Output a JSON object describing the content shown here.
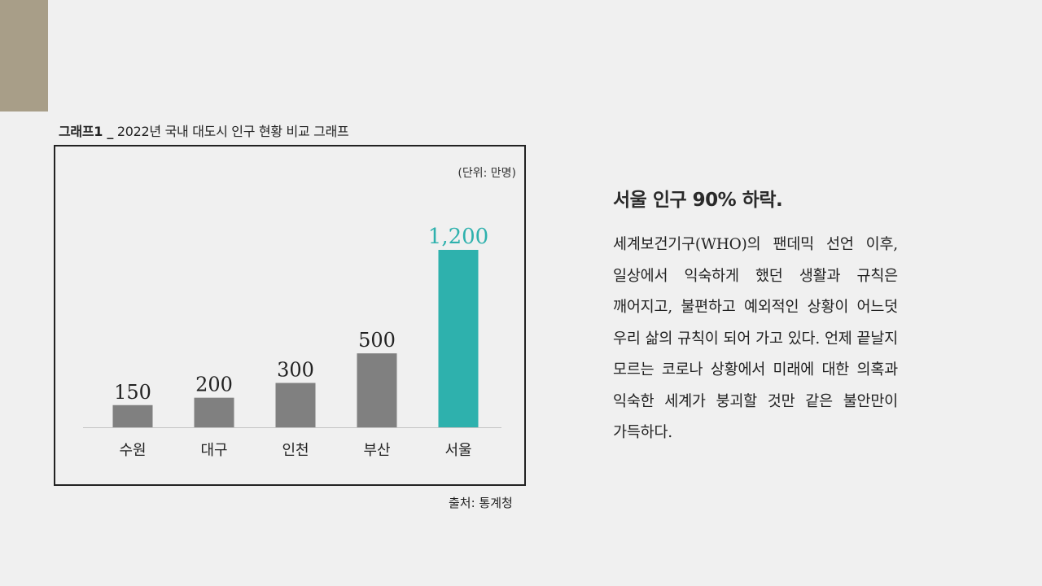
{
  "heading": {
    "label": "그래프1 _",
    "title": "2022년 국내 대도시 인구 현황 비교 그래프"
  },
  "unit_note": "(단위: 만명)",
  "source_note": "출처: 통계청",
  "colors": {
    "bar_default": "#808080",
    "bar_highlight": "#2eb1ad",
    "accent_block": "#a89e88"
  },
  "chart_data": {
    "type": "bar",
    "categories": [
      "수원",
      "대구",
      "인천",
      "부산",
      "서울"
    ],
    "values": [
      150,
      200,
      300,
      500,
      1200
    ],
    "value_labels": [
      "150",
      "200",
      "300",
      "500",
      "1,200"
    ],
    "highlight_index": 4,
    "title": "2022년 국내 대도시 인구 현황 비교 그래프",
    "xlabel": "",
    "ylabel": "(단위: 만명)",
    "grid": false
  },
  "panel": {
    "title": "서울 인구 90% 하락.",
    "body": "세계보건기구(WHO)의 팬데믹 선언 이후, 일상에서 익숙하게 했던 생활과 규칙은 깨어지고, 불편하고 예외적인 상황이 어느덧 우리 삶의 규칙이 되어 가고 있다. 언제 끝날지 모르는 코로나 상황에서 미래에 대한 의혹과 익숙한 세계가 붕괴할 것만 같은 불안만이 가득하다."
  }
}
